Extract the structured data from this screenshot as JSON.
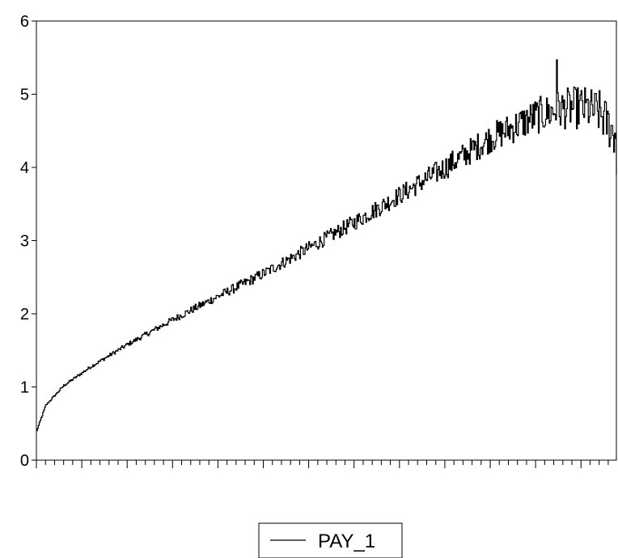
{
  "chart_data": {
    "type": "line",
    "title": "",
    "xlabel": "",
    "ylabel": "",
    "ylim": [
      0,
      6
    ],
    "yticks": [
      "0",
      "1",
      "2",
      "3",
      "4",
      "5",
      "6"
    ],
    "x_axis_tick_labels": false,
    "x_count": 640,
    "grid": false,
    "legend_position": "bottom-center",
    "series": [
      {
        "name": "PAY_1",
        "color": "#000000",
        "trend": {
          "x": [
            0,
            10,
            30,
            60,
            100,
            150,
            200,
            250,
            300,
            350,
            400,
            450,
            500,
            550,
            580,
            600,
            620,
            640
          ],
          "y": [
            0.4,
            0.75,
            1.02,
            1.28,
            1.58,
            1.92,
            2.24,
            2.55,
            2.9,
            3.25,
            3.62,
            4.0,
            4.4,
            4.7,
            4.8,
            4.82,
            4.75,
            4.4
          ]
        },
        "noise": {
          "x": [
            0,
            100,
            200,
            300,
            400,
            500,
            600,
            640
          ],
          "amplitude": [
            0.01,
            0.03,
            0.06,
            0.09,
            0.13,
            0.2,
            0.3,
            0.32
          ]
        },
        "peak": {
          "y": 5.47
        },
        "end": {
          "y": 3.9
        }
      }
    ]
  }
}
